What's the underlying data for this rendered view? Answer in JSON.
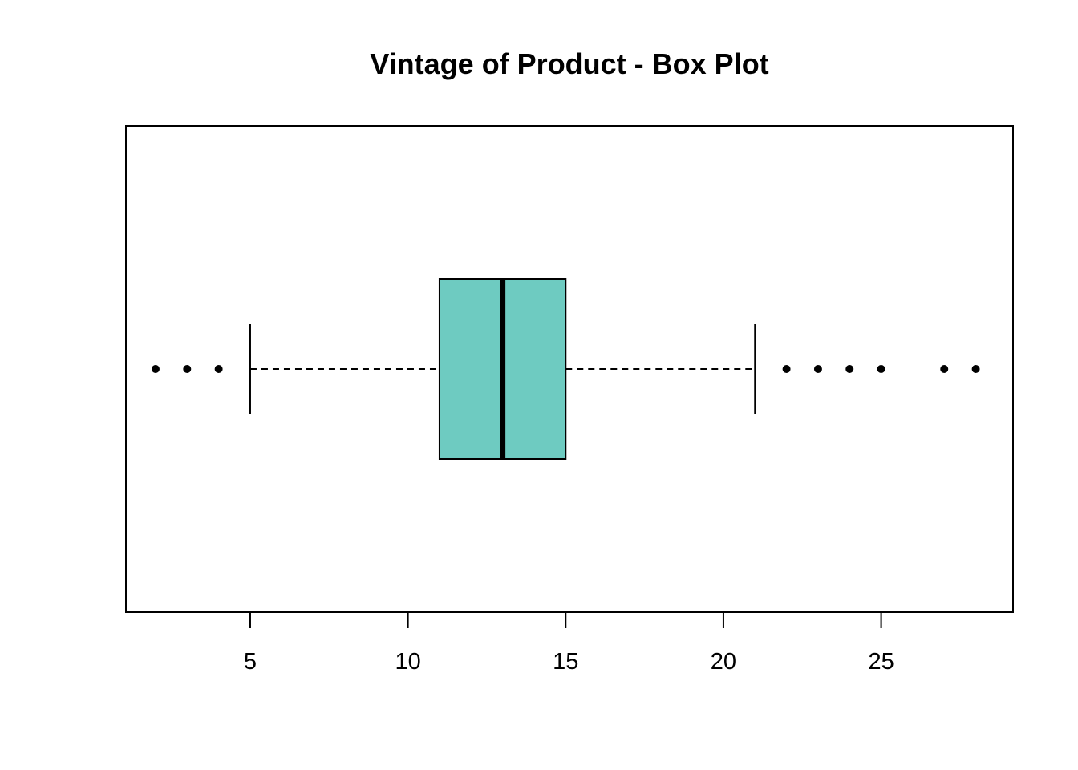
{
  "chart_data": {
    "type": "boxplot",
    "orientation": "horizontal",
    "title": "Vintage of Product - Box Plot",
    "xlabel": "",
    "ylabel": "",
    "xlim": [
      1.06,
      29.18
    ],
    "x_ticks": [
      5,
      10,
      15,
      20,
      25
    ],
    "x_tick_labels": [
      "5",
      "10",
      "15",
      "20",
      "25"
    ],
    "grid": false,
    "box": {
      "whisker_low": 5,
      "q1": 11,
      "median": 13,
      "q3": 15,
      "whisker_high": 21,
      "outliers": [
        2,
        3,
        4,
        22,
        23,
        24,
        25,
        27,
        28
      ],
      "fill_color": "#6ECBC1"
    }
  }
}
